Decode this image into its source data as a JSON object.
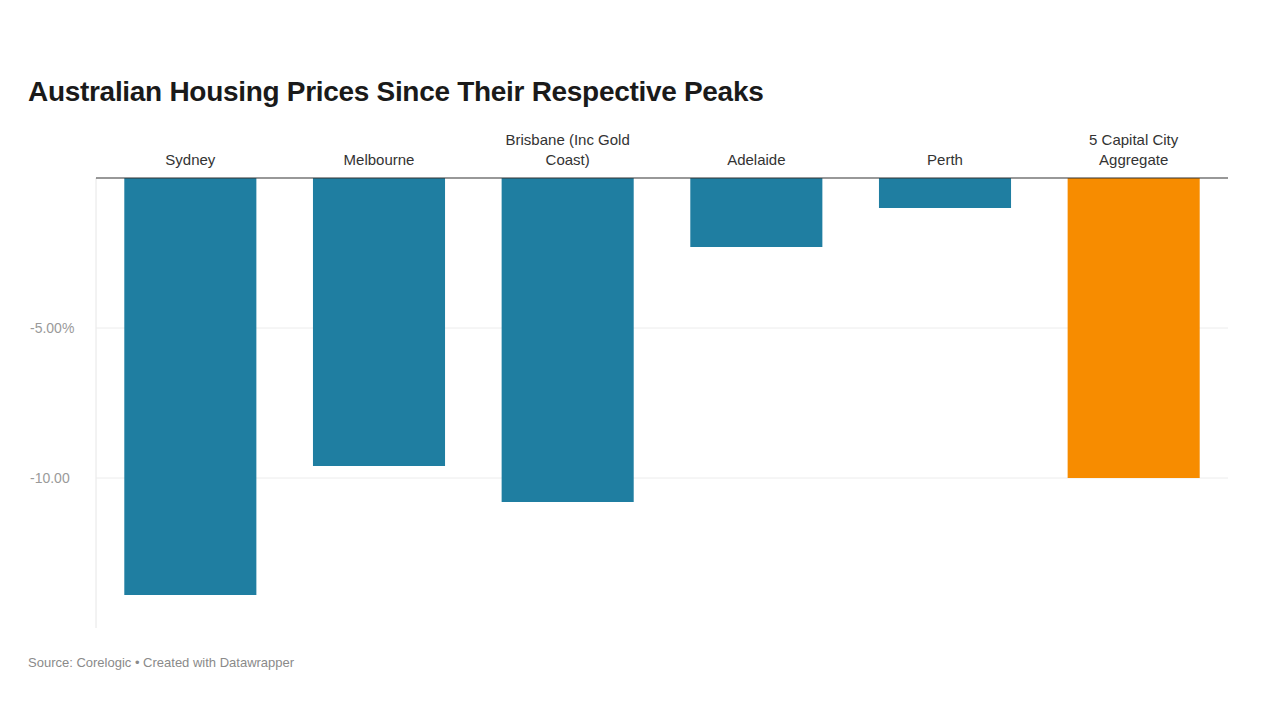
{
  "chart_data": {
    "type": "bar",
    "title": "Australian Housing Prices Since Their Respective Peaks",
    "source": "Source: Corelogic • Created with Datawrapper",
    "categories": [
      "Sydney",
      "Melbourne",
      "Brisbane (Inc Gold Coast)",
      "Adelaide",
      "Perth",
      "5 Capital City Aggregate"
    ],
    "values": [
      -13.9,
      -9.6,
      -10.8,
      -2.3,
      -1.0,
      -10.0
    ],
    "colors": [
      "#1f7ea1",
      "#1f7ea1",
      "#1f7ea1",
      "#1f7ea1",
      "#1f7ea1",
      "#f78c00"
    ],
    "ylim": [
      -15,
      0
    ],
    "yticks": [
      {
        "value": -5,
        "label": "-5.00%"
      },
      {
        "value": -10,
        "label": "-10.00"
      }
    ],
    "grid": true
  }
}
